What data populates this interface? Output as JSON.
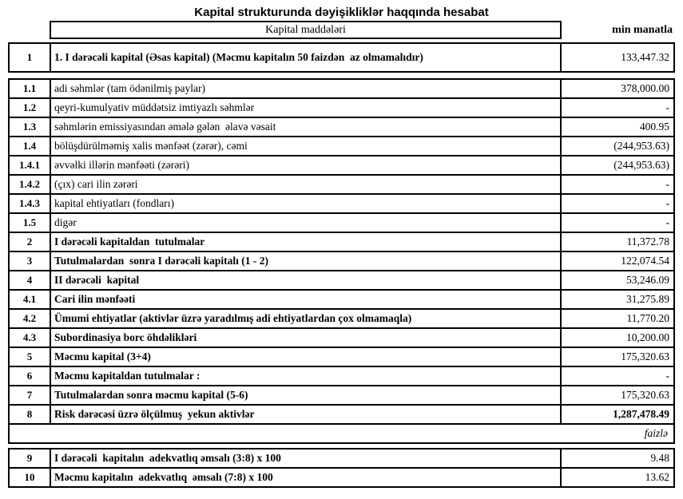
{
  "title": "Kapital strukturunda dəyişikliklər haqqında hesabat",
  "colors": {
    "border": "#000000",
    "background": "#ffffff",
    "text": "#000000"
  },
  "table": {
    "header": {
      "items_label": "Kapital maddələri",
      "unit_label": "min manatla"
    },
    "rows": [
      {
        "num": "1",
        "label": "1. I dərəcəli kapital (Əsas kapital) (Məcmu kapitalın 50 faizdən  az olmamalıdır)",
        "value": "133,447.32",
        "label_bold": true
      },
      {
        "num": "1.1",
        "label": "adi səhmlər (tam ödənilmiş paylar)",
        "value": "378,000.00",
        "label_bold": false
      },
      {
        "num": "1.2",
        "label": "qeyri-kumulyativ müddətsiz imtiyazlı səhmlər",
        "value": "-",
        "label_bold": false
      },
      {
        "num": "1.3",
        "label": "səhmlərin emissiyasından əmələ gələn  əlavə vəsait",
        "value": "400.95",
        "label_bold": false
      },
      {
        "num": "1.4",
        "label": "bölüşdürülməmiş xalis mənfəət (zərər), cəmi",
        "value": "(244,953.63)",
        "label_bold": false
      },
      {
        "num": "1.4.1",
        "label": "əvvəlki illərin mənfəəti (zərəri)",
        "value": "(244,953.63)",
        "label_bold": false
      },
      {
        "num": "1.4.2",
        "label": "(çıx) cari ilin zərəri",
        "value": "-",
        "label_bold": false
      },
      {
        "num": "1.4.3",
        "label": "kapital ehtiyatları (fondları)",
        "value": "-",
        "label_bold": false
      },
      {
        "num": "1.5",
        "label": "digər",
        "value": "-",
        "label_bold": false
      },
      {
        "num": "2",
        "label": "I dərəcəli kapitaldan  tutulmalar",
        "value": "11,372.78",
        "label_bold": true
      },
      {
        "num": "3",
        "label": "Tutulmalardan  sonra I dərəcəli kapitalı (1 - 2)",
        "value": "122,074.54",
        "label_bold": true
      },
      {
        "num": "4",
        "label": "II dərəcəli  kapital",
        "value": "53,246.09",
        "label_bold": true
      },
      {
        "num": "4.1",
        "label": "Cari ilin mənfəəti",
        "value": "31,275.89",
        "label_bold": true
      },
      {
        "num": "4.2",
        "label": "Ümumi ehtiyatlar (aktivlər üzrə yaradılmış adi ehtiyatlardan çox olmamaqla)",
        "value": "11,770.20",
        "label_bold": true
      },
      {
        "num": "4.3",
        "label": "Subordinasiya borc öhdəlikləri",
        "value": "10,200.00",
        "label_bold": true
      },
      {
        "num": "5",
        "label": "Məcmu kapital (3+4)",
        "value": "175,320.63",
        "label_bold": true
      },
      {
        "num": "6",
        "label": "Məcmu kapitaldan tutulmalar :",
        "value": "-",
        "label_bold": true
      },
      {
        "num": "7",
        "label": "Tutulmalardan sonra məcmu kapital (5-6)",
        "value": "175,320.63",
        "label_bold": true
      },
      {
        "num": "8",
        "label": "Risk dərəcəsi üzrə ölçülmuş  yekun aktivlər",
        "value": "1,287,478.49",
        "label_bold": true,
        "value_bold": true
      },
      {
        "type": "unit",
        "label": "faizlə"
      },
      {
        "num": "9",
        "label": "I dərəcəli  kapitalın  adekvatlıq əmsalı (3:8) x 100",
        "value": "9.48",
        "label_bold": true
      },
      {
        "num": "10",
        "label": "Məcmu kapitalın  adekvatlıq  əmsalı (7:8) x 100",
        "value": "13.62",
        "label_bold": true
      }
    ]
  }
}
